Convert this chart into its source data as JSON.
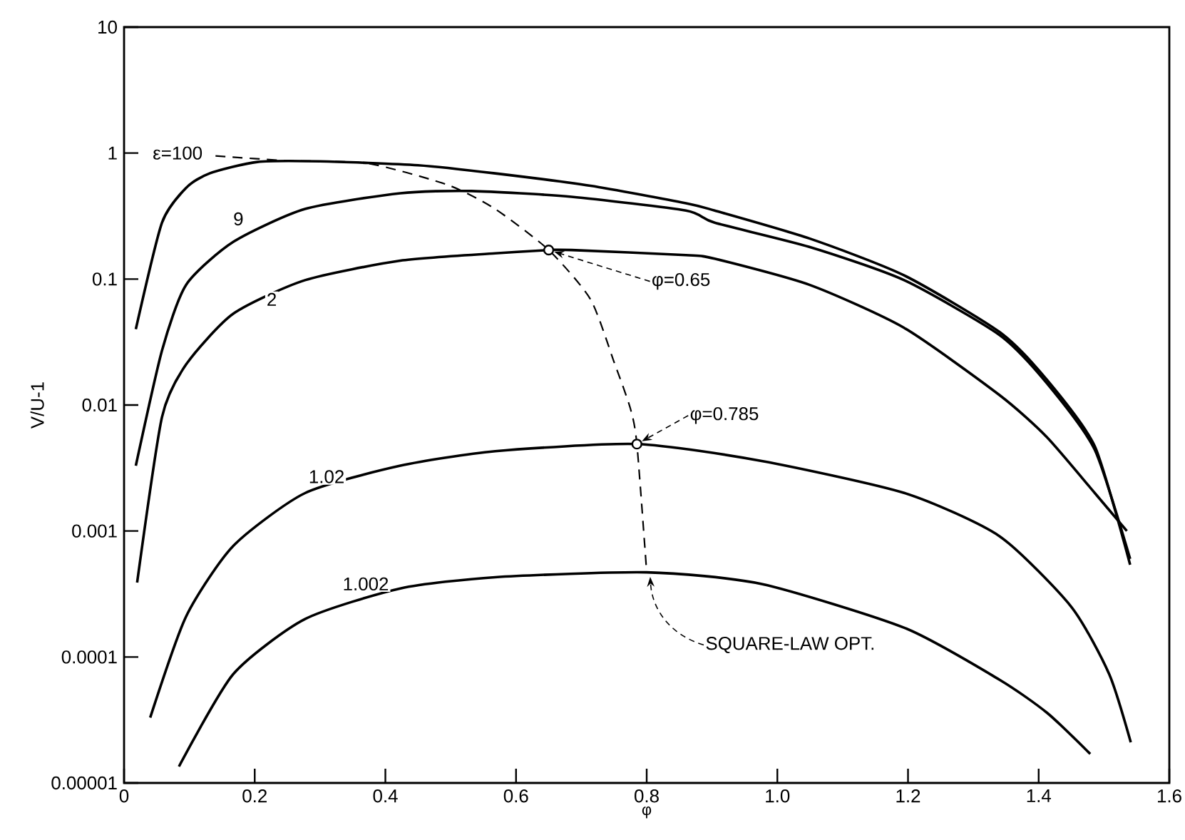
{
  "chart_data": {
    "type": "line",
    "xlabel": "φ",
    "ylabel": "V/U-1",
    "log": "y",
    "marker": "none",
    "line_style": "solid",
    "xlim": [
      0,
      1.6
    ],
    "ylim": [
      1e-05,
      10
    ],
    "xticks": [
      0,
      0.2,
      0.4,
      0.6,
      0.8,
      {
        "value": 1,
        "label": "1.0"
      },
      1.2,
      1.4,
      1.6
    ],
    "yticks": [
      {
        "value": 1e-05,
        "label": "0.00001"
      },
      {
        "value": 0.0001,
        "label": "0.0001"
      },
      {
        "value": 0.001,
        "label": "0.001"
      },
      {
        "value": 0.01,
        "label": "0.01"
      },
      {
        "value": 0.1,
        "label": "0.1"
      },
      {
        "value": 1,
        "label": "1"
      },
      {
        "value": 10,
        "label": "10"
      }
    ],
    "series": [
      {
        "color": "#000000",
        "x": [
          0.018,
          0.058,
          0.095,
          0.131,
          0.204,
          0.3,
          0.45,
          0.568,
          0.714,
          0.86,
          0.904,
          1.049,
          1.194,
          1.34,
          1.412,
          1.486,
          1.54
        ],
        "values": [
          0.04,
          0.28,
          0.53,
          0.69,
          0.85,
          0.86,
          0.8,
          0.69,
          0.55,
          0.4,
          0.35,
          0.21,
          0.107,
          0.038,
          0.016,
          0.0047,
          0.00054
        ]
      },
      {
        "color": "#000000",
        "x": [
          0.018,
          0.058,
          0.095,
          0.167,
          0.277,
          0.423,
          0.532,
          0.685,
          0.86,
          0.904,
          1.049,
          1.194,
          1.34,
          1.412,
          1.486,
          1.54
        ],
        "values": [
          0.0033,
          0.027,
          0.09,
          0.197,
          0.36,
          0.48,
          0.5,
          0.45,
          0.35,
          0.28,
          0.18,
          0.098,
          0.036,
          0.015,
          0.0044,
          0.0006
        ]
      },
      {
        "color": "#000000",
        "x": [
          0.02,
          0.058,
          0.095,
          0.167,
          0.277,
          0.423,
          0.568,
          0.65,
          0.685,
          0.86,
          0.904,
          1.049,
          1.194,
          1.34,
          1.412,
          1.486,
          1.535
        ],
        "values": [
          0.00039,
          0.008,
          0.021,
          0.053,
          0.098,
          0.14,
          0.16,
          0.17,
          0.17,
          0.155,
          0.145,
          0.09,
          0.041,
          0.012,
          0.0056,
          0.002,
          0.001
        ]
      },
      {
        "color": "#000000",
        "x": [
          0.04,
          0.095,
          0.167,
          0.277,
          0.423,
          0.568,
          0.785,
          0.976,
          1.195,
          1.34,
          1.45,
          1.508,
          1.541
        ],
        "values": [
          3.3e-05,
          0.00021,
          0.00076,
          0.002,
          0.0033,
          0.0043,
          0.0049,
          0.0036,
          0.002,
          0.00091,
          0.00025,
          7.3e-05,
          2.1e-05
        ]
      },
      {
        "color": "#000000",
        "x": [
          0.084,
          0.167,
          0.277,
          0.423,
          0.568,
          0.8,
          0.976,
          1.195,
          1.34,
          1.413,
          1.479
        ],
        "values": [
          1.35e-05,
          7.3e-05,
          0.0002,
          0.00035,
          0.00043,
          0.00047,
          0.00038,
          0.00017,
          6.6e-05,
          3.6e-05,
          1.7e-05
        ]
      },
      {
        "color": "#000000",
        "line_style": "dashed",
        "x": [
          0.14,
          0.25,
          0.372,
          0.495,
          0.568,
          0.65,
          0.714,
          0.75,
          0.775,
          0.785,
          0.8
        ],
        "values": [
          0.95,
          0.87,
          0.83,
          0.56,
          0.36,
          0.17,
          0.069,
          0.022,
          0.0094,
          0.0049,
          0.00047
        ]
      },
      {
        "type": "scatter",
        "marker": "circle",
        "color": "#000000",
        "x": [
          0.65,
          0.785
        ],
        "values": [
          0.17,
          0.0049
        ]
      }
    ],
    "annotations": [
      {
        "text": "ε=100",
        "x": 0.082,
        "y": 1
      },
      {
        "text": "9",
        "x": 0.175,
        "y": 0.3
      },
      {
        "text": "2",
        "x": 0.226,
        "y": 0.069
      },
      {
        "text": "1.02",
        "x": 0.31,
        "y": 0.0027
      },
      {
        "text": "1.002",
        "x": 0.37,
        "y": 0.00038
      },
      {
        "text": "φ=0.65",
        "x": 0.65,
        "y": 0.17
      },
      {
        "text": "φ=0.785",
        "x": 0.785,
        "y": 0.0049
      },
      {
        "text": "SQUARE-LAW OPT.",
        "x": 0.8,
        "y": 0.00047
      }
    ]
  }
}
